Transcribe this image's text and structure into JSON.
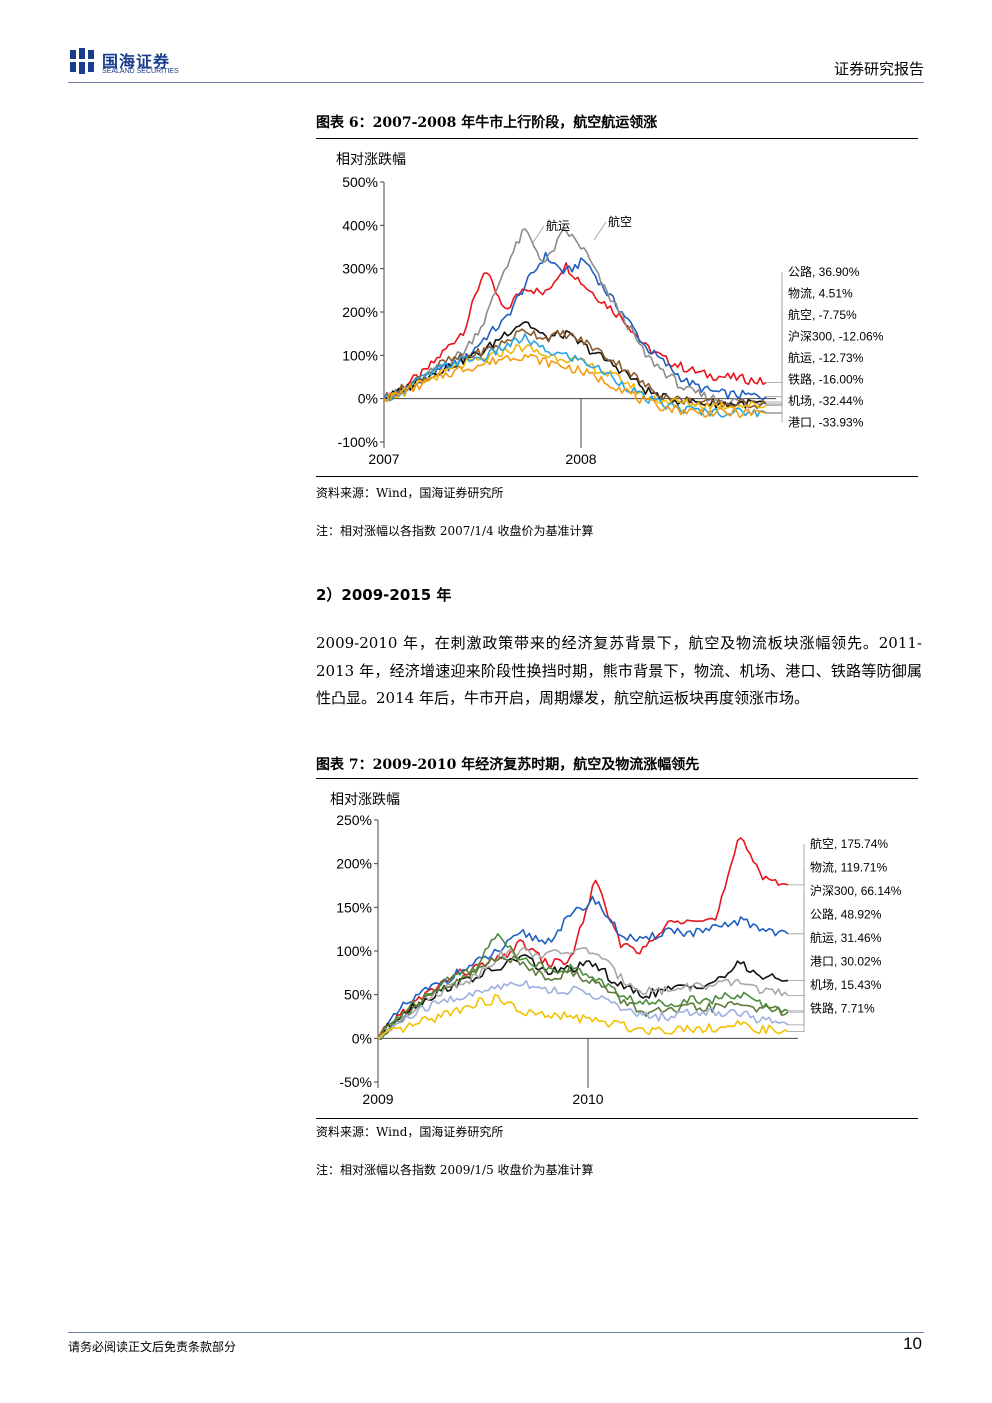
{
  "header": {
    "logo_cn": "国海证券",
    "logo_en": "SEALAND SECURITIES",
    "report_type": "证券研究报告"
  },
  "figure6": {
    "title": "图表 6：2007-2008 年牛市上行阶段，航空航运领涨",
    "source": "资料来源：Wind，国海证券研究所",
    "note": "注：相对涨幅以各指数 2007/1/4 收盘价为基准计算"
  },
  "section": {
    "heading": "2）2009-2015 年",
    "paragraph": "2009-2010 年，在刺激政策带来的经济复苏背景下，航空及物流板块涨幅领先。2011-2013 年，经济增速迎来阶段性换挡时期，熊市背景下，物流、机场、港口、铁路等防御属性凸显。2014 年后，牛市开启，周期爆发，航空航运板块再度领涨市场。"
  },
  "figure7": {
    "title": "图表 7：2009-2010 年经济复苏时期，航空及物流涨幅领先",
    "source": "资料来源：Wind，国海证券研究所",
    "note": "注：相对涨幅以各指数 2009/1/5 收盘价为基准计算"
  },
  "footer": {
    "disclaimer": "请务必阅读正文后免责条款部分",
    "page_number": "10"
  },
  "chart_data": [
    {
      "type": "line",
      "ylabel": "相对涨跌幅",
      "ylim": [
        -100,
        500
      ],
      "y_ticks": [
        "500%",
        "400%",
        "300%",
        "200%",
        "100%",
        "0%",
        "-100%"
      ],
      "x_ticks": [
        "2007",
        "2008"
      ],
      "series": [
        {
          "name": "公路",
          "color": "#e8141b",
          "end_label": "公路, 36.90%",
          "values": [
            0,
            30,
            60,
            110,
            160,
            300,
            200,
            260,
            240,
            310,
            260,
            220,
            180,
            120,
            90,
            70,
            55,
            50,
            45,
            37
          ]
        },
        {
          "name": "物流",
          "color": "#1f5fbf",
          "end_label": "物流, 4.51%",
          "values": [
            0,
            20,
            40,
            70,
            90,
            140,
            180,
            260,
            330,
            290,
            320,
            250,
            190,
            120,
            80,
            40,
            20,
            10,
            8,
            4.5
          ]
        },
        {
          "name": "航空",
          "color": "#8c8c8c",
          "end_label": "航空,   -7.75%",
          "values": [
            0,
            20,
            50,
            80,
            110,
            180,
            300,
            390,
            310,
            390,
            340,
            250,
            180,
            100,
            60,
            20,
            5,
            -5,
            -6,
            -7.75
          ]
        },
        {
          "name": "沪深300",
          "color": "#111111",
          "end_label": "沪深300,   -12.06%",
          "values": [
            0,
            20,
            50,
            70,
            90,
            110,
            150,
            180,
            140,
            150,
            120,
            90,
            60,
            20,
            0,
            -5,
            -10,
            -12,
            -11,
            -12.06
          ]
        },
        {
          "name": "航运",
          "color": "#8a5a2b",
          "end_label": "航运, -12.73%",
          "values": [
            0,
            25,
            55,
            85,
            95,
            110,
            130,
            160,
            140,
            150,
            130,
            100,
            70,
            30,
            5,
            -5,
            -10,
            -12,
            -12,
            -12.73
          ]
        },
        {
          "name": "铁路",
          "color": "#f2b705",
          "end_label": "铁路,   -16.00%",
          "values": [
            0,
            15,
            40,
            60,
            80,
            90,
            110,
            120,
            100,
            95,
            80,
            60,
            40,
            5,
            -5,
            -10,
            -15,
            -16,
            -15,
            -16
          ]
        },
        {
          "name": "机场",
          "color": "#29a3e0",
          "end_label": "机场, -32.44%",
          "values": [
            0,
            20,
            50,
            75,
            90,
            95,
            120,
            140,
            110,
            100,
            85,
            60,
            30,
            0,
            -15,
            -25,
            -30,
            -32,
            -31,
            -32.44
          ]
        },
        {
          "name": "港口",
          "color": "#f39c12",
          "end_label": "港口,   -33.93%",
          "values": [
            0,
            15,
            35,
            55,
            70,
            80,
            95,
            100,
            85,
            75,
            60,
            40,
            20,
            -10,
            -20,
            -28,
            -32,
            -33,
            -33,
            -33.93
          ]
        }
      ]
    },
    {
      "type": "line",
      "ylabel": "相对涨跌幅",
      "ylim": [
        -50,
        250
      ],
      "y_ticks": [
        "250%",
        "200%",
        "150%",
        "100%",
        "50%",
        "0%",
        "-50%"
      ],
      "x_ticks": [
        "2009",
        "2010"
      ],
      "series": [
        {
          "name": "航空",
          "color": "#e8141b",
          "end_label": "航空, 175.74%",
          "values": [
            0,
            30,
            50,
            70,
            80,
            90,
            110,
            85,
            90,
            180,
            110,
            100,
            130,
            140,
            135,
            230,
            185,
            175.74
          ]
        },
        {
          "name": "物流",
          "color": "#1f5fbf",
          "end_label": "物流, 119.71%",
          "values": [
            0,
            35,
            55,
            70,
            85,
            100,
            120,
            110,
            140,
            160,
            120,
            110,
            125,
            120,
            125,
            135,
            125,
            119.71
          ]
        },
        {
          "name": "沪深300",
          "color": "#111111",
          "end_label": "沪深300, 66.14%",
          "values": [
            0,
            30,
            45,
            60,
            70,
            80,
            95,
            75,
            80,
            85,
            60,
            50,
            55,
            60,
            65,
            85,
            70,
            66.14
          ]
        },
        {
          "name": "公路",
          "color": "#a8a8a8",
          "end_label": "公路, 48.92%",
          "values": [
            0,
            25,
            45,
            60,
            70,
            95,
            100,
            95,
            100,
            100,
            70,
            55,
            55,
            60,
            60,
            65,
            55,
            48.92
          ]
        },
        {
          "name": "航运",
          "color": "#4d8a3a",
          "end_label": "航运, 31.46%",
          "values": [
            0,
            30,
            50,
            70,
            80,
            120,
            90,
            80,
            80,
            70,
            50,
            40,
            40,
            45,
            45,
            50,
            38,
            31.46
          ]
        },
        {
          "name": "港口",
          "color": "#5b7a3a",
          "end_label": "港口, 30.02%",
          "values": [
            0,
            25,
            45,
            60,
            75,
            95,
            85,
            70,
            75,
            65,
            45,
            30,
            30,
            35,
            35,
            40,
            33,
            30.02
          ]
        },
        {
          "name": "机场",
          "color": "#9db0e0",
          "end_label": "机场, 15.43%",
          "values": [
            0,
            20,
            35,
            45,
            50,
            60,
            65,
            55,
            55,
            50,
            35,
            25,
            25,
            30,
            30,
            30,
            20,
            15.43
          ]
        },
        {
          "name": "铁路",
          "color": "#f2c200",
          "end_label": "铁路, 7.71%",
          "values": [
            0,
            10,
            20,
            30,
            40,
            45,
            30,
            25,
            25,
            20,
            15,
            10,
            10,
            12,
            12,
            15,
            10,
            7.71
          ]
        }
      ]
    }
  ]
}
